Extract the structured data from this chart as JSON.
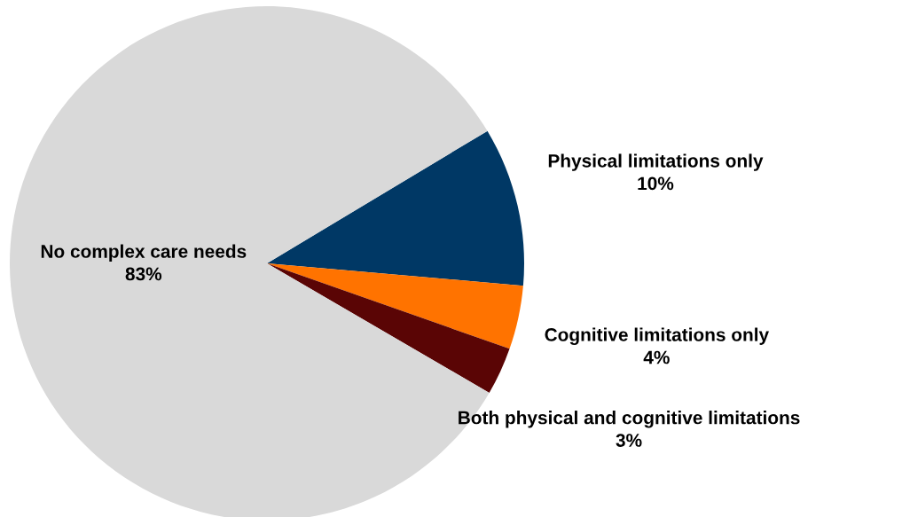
{
  "chart_data": {
    "type": "pie",
    "categories": [
      "Physical limitations only",
      "Cognitive limitations only",
      "Both physical and cognitive limitations",
      "No complex care needs"
    ],
    "values": [
      10,
      4,
      3,
      83
    ],
    "value_labels": [
      "10%",
      "4%",
      "3%",
      "83%"
    ],
    "colors": [
      "#003865",
      "#ff7300",
      "#5a0505",
      "#d9d9d9"
    ],
    "legend": false
  }
}
